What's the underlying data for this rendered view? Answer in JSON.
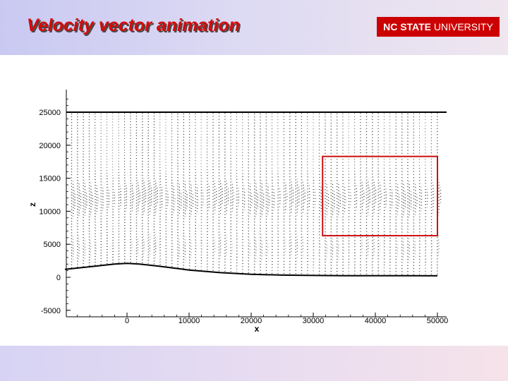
{
  "header": {
    "title": "Velocity vector animation",
    "logo_bold": "NC STATE",
    "logo_text": " UNIVERSITY"
  },
  "colors": {
    "title": "#d50b0b",
    "logo_bg": "#cc0000",
    "highlight_box": "#cc1111",
    "vectors": "#000000"
  },
  "chart_data": {
    "type": "vector-field",
    "xlabel": "x",
    "ylabel": "z",
    "xlim": [
      -10000,
      51000
    ],
    "ylim": [
      -5300,
      28000
    ],
    "xticks": [
      0,
      10000,
      20000,
      30000,
      40000,
      50000
    ],
    "yticks": [
      -5000,
      0,
      5000,
      10000,
      15000,
      20000,
      25000
    ],
    "xtick_labels": [
      "0",
      "10000",
      "20000",
      "30000",
      "40000",
      "50000"
    ],
    "ytick_labels": [
      "-5000",
      "0",
      "5000",
      "10000",
      "15000",
      "20000",
      "25000"
    ],
    "top_boundary_z": 25000,
    "terrain": {
      "x": [
        -10000,
        -5000,
        -2000,
        0,
        2000,
        5000,
        10000,
        15000,
        20000,
        25000,
        30000,
        35000,
        40000,
        45000,
        50000
      ],
      "z": [
        1200,
        1700,
        2000,
        2100,
        2000,
        1700,
        1100,
        700,
        450,
        330,
        280,
        250,
        240,
        230,
        220
      ]
    },
    "highlight_box": {
      "x": [
        31500,
        50000
      ],
      "z": [
        6300,
        18300
      ]
    },
    "grid": false
  }
}
